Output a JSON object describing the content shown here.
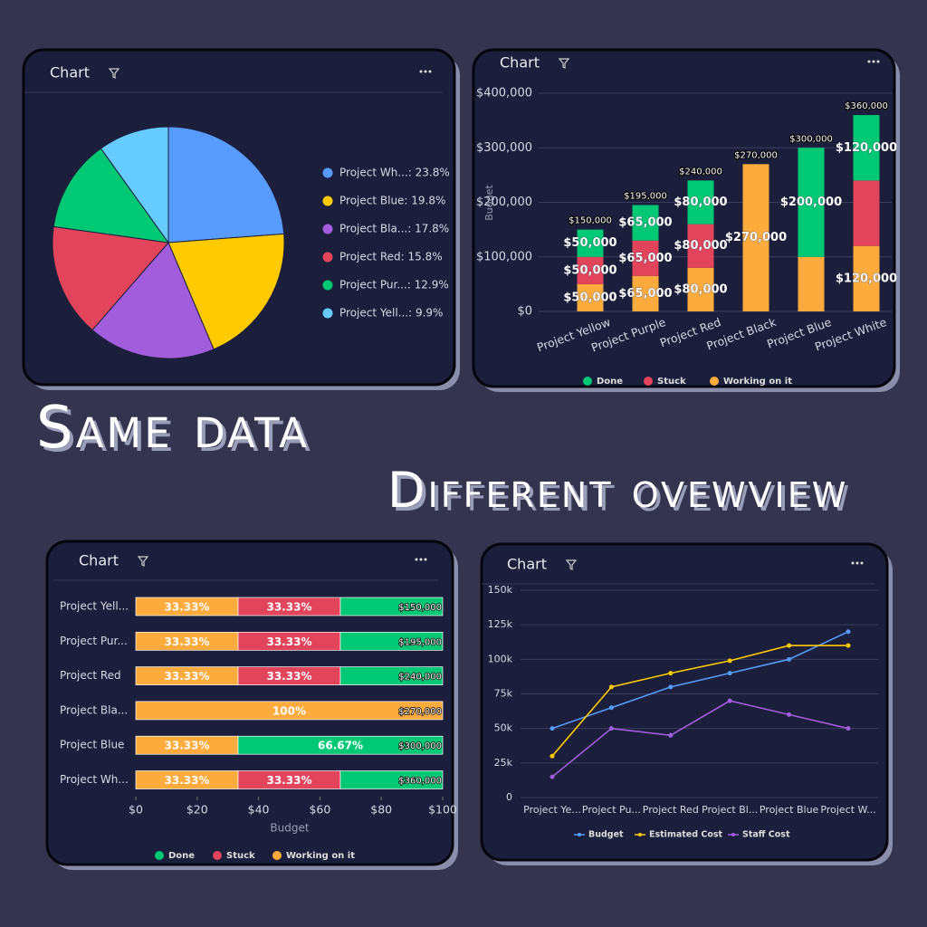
{
  "headline": [
    "Same data",
    "Different ovewview"
  ],
  "chart_data": [
    {
      "type": "pie",
      "title": "Chart",
      "categories": [
        "Project Wh...: 23.8%",
        "Project Blue: 19.8%",
        "Project Bla...: 17.8%",
        "Project Red: 15.8%",
        "Project Pur...: 12.9%",
        "Project Yell...: 9.9%"
      ],
      "values": [
        23.8,
        19.8,
        17.8,
        15.8,
        12.9,
        9.9
      ],
      "colors": [
        "#579bfc",
        "#ffcb00",
        "#a25ddc",
        "#e2445c",
        "#00c875",
        "#66ccff"
      ]
    },
    {
      "type": "stacked_bar",
      "title": "Chart",
      "ylabel": "Budget",
      "categories": [
        "Project Yellow",
        "Project Purple",
        "Project Red",
        "Project Black",
        "Project Blue",
        "Project White"
      ],
      "series": [
        {
          "name": "Done",
          "color": "#00c875",
          "values": [
            50000,
            65000,
            80000,
            0,
            200000,
            120000
          ],
          "value_labels": [
            "$50,000",
            "$65,000",
            "$80,000",
            null,
            "$200,000",
            "$120,000"
          ]
        },
        {
          "name": "Stuck",
          "color": "#e2445c",
          "values": [
            50000,
            65000,
            80000,
            0,
            0,
            120000
          ],
          "value_labels": [
            "$50,000",
            "$65,000",
            "$80,000",
            null,
            null,
            null
          ]
        },
        {
          "name": "Working on it",
          "color": "#fdab3d",
          "values": [
            50000,
            65000,
            80000,
            270000,
            100000,
            120000
          ],
          "value_labels": [
            "$50,000",
            "$65,000",
            "$80,000",
            "$270,000",
            null,
            "$120,000"
          ]
        }
      ],
      "total_labels": [
        "$150,000",
        "$195,000",
        "$240,000",
        "$270,000",
        "$300,000",
        "$360,000"
      ],
      "ylim": [
        0,
        400000
      ],
      "yticks": [
        {
          "value": 0,
          "label": "$0"
        },
        {
          "value": 100000,
          "label": "$100,000"
        },
        {
          "value": 200000,
          "label": "$200,000"
        },
        {
          "value": 300000,
          "label": "$300,000"
        },
        {
          "value": 400000,
          "label": "$400,000"
        }
      ],
      "grid": true
    },
    {
      "type": "hbar_percent",
      "title": "Chart",
      "xlabel": "Budget",
      "categories": [
        "Project Yell...",
        "Project Pur...",
        "Project Red",
        "Project Bla...",
        "Project Blue",
        "Project Wh..."
      ],
      "series": [
        {
          "name": "Done",
          "color": "#00c875",
          "values": [
            33.33,
            33.33,
            33.33,
            0,
            66.67,
            33.33
          ],
          "value_labels": [
            null,
            null,
            null,
            null,
            "66.67%",
            null
          ]
        },
        {
          "name": "Stuck",
          "color": "#e2445c",
          "values": [
            33.33,
            33.33,
            33.33,
            0,
            0,
            33.33
          ],
          "value_labels": [
            "33.33%",
            "33.33%",
            "33.33%",
            null,
            null,
            "33.33%"
          ]
        },
        {
          "name": "Working on it",
          "color": "#fdab3d",
          "values": [
            33.33,
            33.33,
            33.33,
            100,
            33.33,
            33.33
          ],
          "value_labels": [
            "33.33%",
            "33.33%",
            "33.33%",
            "100%",
            "33.33%",
            "33.33%"
          ]
        }
      ],
      "total_labels": [
        "$150,000",
        "$195,000",
        "$240,000",
        "$270,000",
        "$300,000",
        "$360,000"
      ],
      "xlim": [
        0,
        100
      ],
      "xticks": [
        {
          "value": 0,
          "label": "$0"
        },
        {
          "value": 20,
          "label": "$20"
        },
        {
          "value": 40,
          "label": "$40"
        },
        {
          "value": 60,
          "label": "$60"
        },
        {
          "value": 80,
          "label": "$80"
        },
        {
          "value": 100,
          "label": "$100"
        }
      ]
    },
    {
      "type": "line",
      "title": "Chart",
      "categories": [
        "Project Ye...",
        "Project Pu...",
        "Project Red",
        "Project Bl...",
        "Project Blue",
        "Project W..."
      ],
      "series": [
        {
          "name": "Budget",
          "color": "#579bfc",
          "values": [
            50000,
            65000,
            80000,
            90000,
            100000,
            120000
          ]
        },
        {
          "name": "Estimated Cost",
          "color": "#ffcb00",
          "values": [
            30000,
            80000,
            90000,
            99000,
            110000,
            110000
          ]
        },
        {
          "name": "Staff Cost",
          "color": "#a25ddc",
          "values": [
            15000,
            50000,
            45000,
            70000,
            60000,
            50000
          ]
        }
      ],
      "ylim": [
        0,
        150000
      ],
      "yticks": [
        0,
        {
          "value": 25000,
          "label": "25k"
        },
        {
          "value": 50000,
          "label": "50k"
        },
        {
          "value": 75000,
          "label": "75k"
        },
        {
          "value": 100000,
          "label": "100k"
        },
        {
          "value": 125000,
          "label": "125k"
        },
        {
          "value": 150000,
          "label": "150k"
        }
      ],
      "grid": true
    }
  ]
}
